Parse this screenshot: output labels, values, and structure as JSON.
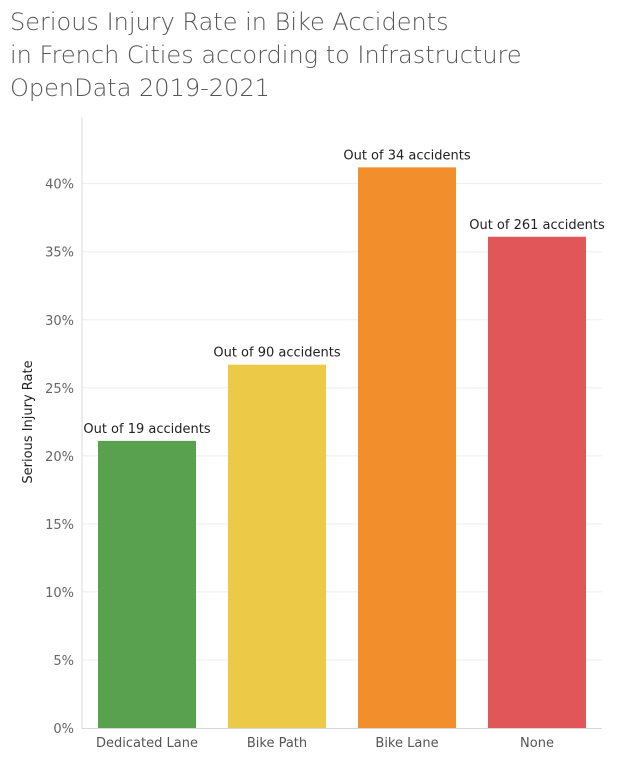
{
  "chart_data": {
    "type": "bar",
    "title_lines": [
      "Serious Injury Rate in Bike Accidents",
      "in French Cities according to Infrastructure",
      "OpenData 2019-2021"
    ],
    "xlabel": "",
    "ylabel": "Serious Injury Rate",
    "categories": [
      "Dedicated Lane",
      "Bike Path",
      "Bike Lane",
      "None"
    ],
    "values": [
      21.1,
      26.7,
      41.2,
      36.1
    ],
    "value_unit": "%",
    "data_labels": [
      "Out of 19 accidents",
      "Out of 90 accidents",
      "Out of 34 accidents",
      "Out of 261 accidents"
    ],
    "colors": [
      "#59a14f",
      "#edc948",
      "#f28e2b",
      "#e15759"
    ],
    "yticks": [
      0,
      5,
      10,
      15,
      20,
      25,
      30,
      35,
      40
    ],
    "ytick_labels": [
      "0%",
      "5%",
      "10%",
      "15%",
      "20%",
      "25%",
      "30%",
      "35%",
      "40%"
    ],
    "ylim": [
      0,
      44.9
    ],
    "grid": true,
    "legend": "none"
  }
}
